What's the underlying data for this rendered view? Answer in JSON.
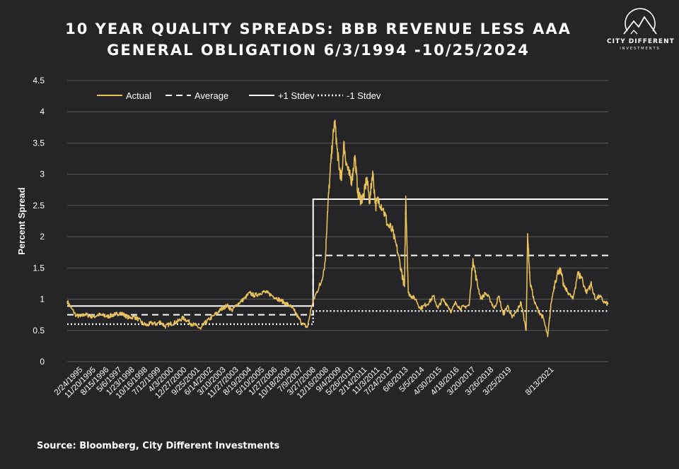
{
  "title_line1": "10 YEAR QUALITY SPREADS: BBB REVENUE LESS AAA",
  "title_line2": "GENERAL OBLIGATION 6/3/1994 -10/25/2024",
  "logo": {
    "line1": "CITY DIFFERENT",
    "line2": "INVESTMENTS",
    "icon": "mountain-circle-icon"
  },
  "source": "Source: Bloomberg, City Different Investments",
  "colors": {
    "background": "#252527",
    "actual": "#E8C15A",
    "lines": "#FFFFFF",
    "grid": "#5A5A5E"
  },
  "chart_data": {
    "type": "line",
    "title": "10 YEAR QUALITY SPREADS: BBB REVENUE LESS AAA GENERAL OBLIGATION 6/3/1994 -10/25/2024",
    "xlabel": "",
    "ylabel": "Percent Spread",
    "ylim": [
      0,
      4.5
    ],
    "yticks": [
      "0",
      "0.5",
      "1",
      "1.5",
      "2",
      "2.5",
      "3",
      "3.5",
      "4",
      "4.5"
    ],
    "xlim": [
      "1994-06-03",
      "2024-10-25"
    ],
    "xticks": [
      {
        "label": "2/24/1995",
        "date": "1995-02-24"
      },
      {
        "label": "11/20/1995",
        "date": "1995-11-20"
      },
      {
        "label": "8/15/1996",
        "date": "1996-08-15"
      },
      {
        "label": "5/6/1997",
        "date": "1997-05-06"
      },
      {
        "label": "1/23/1998",
        "date": "1998-01-23"
      },
      {
        "label": "10/16/1998",
        "date": "1998-10-16"
      },
      {
        "label": "7/12/1999",
        "date": "1999-07-12"
      },
      {
        "label": "4/3/2000",
        "date": "2000-04-03"
      },
      {
        "label": "12/27/2000",
        "date": "2000-12-27"
      },
      {
        "label": "9/25/2001",
        "date": "2001-09-25"
      },
      {
        "label": "6/14/2002",
        "date": "2002-06-14"
      },
      {
        "label": "3/10/2003",
        "date": "2003-03-10"
      },
      {
        "label": "11/27/2003",
        "date": "2003-11-27"
      },
      {
        "label": "8/19/2004",
        "date": "2004-08-19"
      },
      {
        "label": "5/10/2005",
        "date": "2005-05-10"
      },
      {
        "label": "1/27/2006",
        "date": "2006-01-27"
      },
      {
        "label": "10/18/2006",
        "date": "2006-10-18"
      },
      {
        "label": "7/9/2007",
        "date": "2007-07-09"
      },
      {
        "label": "3/27/2008",
        "date": "2008-03-27"
      },
      {
        "label": "12/16/2008",
        "date": "2008-12-16"
      },
      {
        "label": "9/4/2009",
        "date": "2009-09-04"
      },
      {
        "label": "5/26/2010",
        "date": "2010-05-26"
      },
      {
        "label": "2/14/2011",
        "date": "2011-02-14"
      },
      {
        "label": "11/3/2011",
        "date": "2011-11-03"
      },
      {
        "label": "7/24/2012",
        "date": "2012-07-24"
      },
      {
        "label": "6/6/2013",
        "date": "2013-06-06"
      },
      {
        "label": "5/5/2014",
        "date": "2014-05-05"
      },
      {
        "label": "4/30/2015",
        "date": "2015-04-30"
      },
      {
        "label": "4/18/2016",
        "date": "2016-04-18"
      },
      {
        "label": "3/20/2017",
        "date": "2017-03-20"
      },
      {
        "label": "3/26/2018",
        "date": "2018-03-26"
      },
      {
        "label": "3/25/2019",
        "date": "2019-03-25"
      },
      {
        "label": "8/13/2021",
        "date": "2021-08-13"
      }
    ],
    "legend": {
      "position": "top-left"
    },
    "series": [
      {
        "name": "Actual",
        "style": "solid",
        "color": "#E8C15A",
        "x": [
          "1994-06-03",
          "1994-09-01",
          "1994-12-01",
          "1995-03-01",
          "1995-06-01",
          "1995-09-01",
          "1995-12-01",
          "1996-03-01",
          "1996-06-01",
          "1996-09-01",
          "1996-12-01",
          "1997-03-01",
          "1997-06-01",
          "1997-09-01",
          "1997-12-01",
          "1998-03-01",
          "1998-06-01",
          "1998-09-01",
          "1998-12-01",
          "1999-03-01",
          "1999-06-01",
          "1999-09-01",
          "1999-12-01",
          "2000-03-01",
          "2000-06-01",
          "2000-09-01",
          "2000-12-01",
          "2001-03-01",
          "2001-06-01",
          "2001-09-01",
          "2001-12-01",
          "2002-03-01",
          "2002-06-01",
          "2002-09-01",
          "2002-12-01",
          "2003-03-01",
          "2003-06-01",
          "2003-09-01",
          "2003-12-01",
          "2004-03-01",
          "2004-06-01",
          "2004-09-01",
          "2004-12-01",
          "2005-03-01",
          "2005-06-01",
          "2005-09-01",
          "2005-12-01",
          "2006-03-01",
          "2006-06-01",
          "2006-09-01",
          "2006-12-01",
          "2007-03-01",
          "2007-06-01",
          "2007-09-01",
          "2007-12-01",
          "2008-03-01",
          "2008-06-01",
          "2008-09-01",
          "2008-12-01",
          "2009-01-15",
          "2009-03-01",
          "2009-05-01",
          "2009-06-15",
          "2009-08-01",
          "2009-09-15",
          "2009-11-01",
          "2009-12-15",
          "2010-02-01",
          "2010-04-01",
          "2010-06-01",
          "2010-08-01",
          "2010-10-01",
          "2010-12-01",
          "2011-02-01",
          "2011-04-01",
          "2011-06-01",
          "2011-08-01",
          "2011-10-01",
          "2011-12-01",
          "2012-03-01",
          "2012-06-01",
          "2012-09-01",
          "2012-12-01",
          "2013-03-01",
          "2013-05-15",
          "2013-06-10",
          "2013-08-01",
          "2013-10-01",
          "2014-01-01",
          "2014-04-01",
          "2014-07-01",
          "2014-10-01",
          "2015-01-01",
          "2015-04-01",
          "2015-07-01",
          "2015-10-01",
          "2016-01-01",
          "2016-04-01",
          "2016-07-01",
          "2016-10-01",
          "2017-01-01",
          "2017-03-20",
          "2017-06-01",
          "2017-09-01",
          "2017-12-01",
          "2018-03-01",
          "2018-06-01",
          "2018-09-01",
          "2018-12-01",
          "2019-03-01",
          "2019-06-01",
          "2019-09-01",
          "2019-12-01",
          "2020-03-15",
          "2020-04-15",
          "2020-06-01",
          "2020-09-01",
          "2020-12-01",
          "2021-03-01",
          "2021-06-01",
          "2021-08-13",
          "2021-11-01",
          "2022-02-01",
          "2022-05-01",
          "2022-08-01",
          "2022-11-01",
          "2023-02-01",
          "2023-05-01",
          "2023-08-01",
          "2023-11-01",
          "2024-02-01",
          "2024-05-01",
          "2024-08-01",
          "2024-10-25"
        ],
        "y": [
          0.97,
          0.85,
          0.74,
          0.72,
          0.76,
          0.73,
          0.72,
          0.75,
          0.74,
          0.72,
          0.74,
          0.76,
          0.78,
          0.74,
          0.7,
          0.72,
          0.68,
          0.61,
          0.58,
          0.62,
          0.6,
          0.64,
          0.56,
          0.6,
          0.62,
          0.65,
          0.7,
          0.66,
          0.6,
          0.58,
          0.52,
          0.62,
          0.68,
          0.74,
          0.8,
          0.86,
          0.9,
          0.82,
          0.9,
          0.96,
          1.02,
          1.1,
          1.06,
          1.08,
          1.12,
          1.1,
          1.06,
          1.02,
          0.98,
          0.94,
          0.9,
          0.82,
          0.7,
          0.6,
          0.55,
          0.9,
          1.1,
          1.25,
          1.6,
          2.4,
          2.9,
          3.55,
          3.85,
          3.4,
          3.1,
          2.9,
          3.5,
          3.2,
          3.0,
          2.9,
          3.3,
          2.7,
          2.6,
          2.65,
          2.95,
          2.55,
          3.05,
          2.5,
          2.6,
          2.45,
          2.2,
          2.1,
          1.85,
          1.5,
          1.2,
          2.65,
          1.1,
          1.05,
          1.0,
          0.85,
          0.9,
          0.95,
          1.05,
          0.85,
          1.0,
          0.92,
          0.8,
          0.95,
          0.85,
          0.88,
          0.9,
          1.65,
          1.3,
          1.0,
          1.1,
          1.0,
          0.85,
          1.05,
          0.75,
          0.9,
          0.7,
          0.8,
          0.95,
          0.5,
          2.05,
          1.3,
          0.95,
          0.8,
          0.7,
          0.4,
          0.95,
          1.3,
          1.5,
          1.2,
          1.1,
          1.0,
          1.4,
          1.35,
          1.1,
          1.25,
          1.0,
          1.05,
          0.95,
          0.92
        ]
      },
      {
        "name": "Average",
        "style": "dashed",
        "color": "#FFFFFF",
        "segments": [
          {
            "x": [
              "1994-06-03",
              "2008-03-27"
            ],
            "y": [
              0.75,
              0.75
            ]
          },
          {
            "x": [
              "2008-03-27",
              "2024-10-25"
            ],
            "y": [
              1.7,
              1.7
            ]
          }
        ]
      },
      {
        "name": "+1 Stdev",
        "style": "solid",
        "color": "#FFFFFF",
        "segments": [
          {
            "x": [
              "1994-06-03",
              "2008-03-27"
            ],
            "y": [
              0.89,
              0.89
            ]
          },
          {
            "x": [
              "2008-03-27",
              "2024-10-25"
            ],
            "y": [
              2.6,
              2.6
            ]
          }
        ]
      },
      {
        "name": "-1 Stdev",
        "style": "dotted",
        "color": "#FFFFFF",
        "segments": [
          {
            "x": [
              "1994-06-03",
              "2008-03-27"
            ],
            "y": [
              0.6,
              0.6
            ]
          },
          {
            "x": [
              "2008-03-27",
              "2024-10-25"
            ],
            "y": [
              0.81,
              0.81
            ]
          }
        ]
      }
    ]
  }
}
